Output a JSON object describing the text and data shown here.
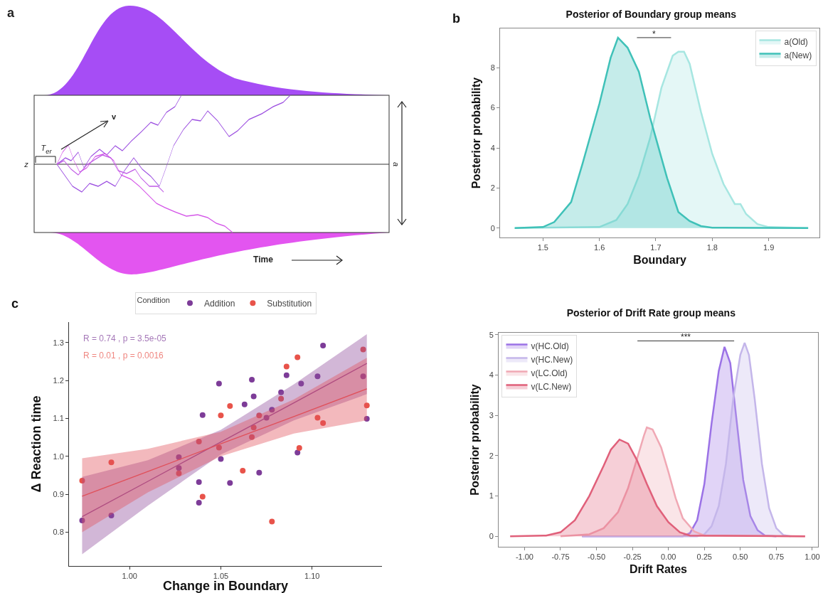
{
  "chart_data": [
    {
      "type": "other",
      "annotations": [
        "a",
        "v",
        "T$_{er}$",
        "z",
        "a",
        "Time"
      ]
    },
    {
      "type": "area",
      "title": "Posterior of Boundary group means",
      "xlabel": "Boundary",
      "ylabel": "Posterior probability",
      "annotations": [
        "b",
        "*"
      ],
      "xlim": [
        1.424,
        1.99
      ],
      "ylim": [
        -0.47,
        9.96
      ],
      "xticks": [
        1.5,
        1.6,
        1.7,
        1.8,
        1.9
      ],
      "yticks": [
        0,
        2,
        4,
        6,
        8
      ],
      "grid": false,
      "legend": "top right",
      "series": [
        {
          "name": "a(Old)",
          "color": "#a6e6e1",
          "x": [
            1.45,
            1.6,
            1.63,
            1.65,
            1.67,
            1.69,
            1.71,
            1.73,
            1.74,
            1.75,
            1.76,
            1.78,
            1.8,
            1.82,
            1.84,
            1.85,
            1.86,
            1.88,
            1.9,
            1.97
          ],
          "values": [
            0,
            0.05,
            0.4,
            1.2,
            2.6,
            4.5,
            7,
            8.6,
            8.8,
            8.8,
            8.2,
            5.8,
            3.7,
            2.2,
            1.2,
            1.2,
            0.7,
            0.2,
            0.05,
            0
          ]
        },
        {
          "name": "a(New)",
          "color": "#3fc1b8",
          "x": [
            1.45,
            1.5,
            1.52,
            1.55,
            1.57,
            1.6,
            1.62,
            1.633,
            1.65,
            1.67,
            1.69,
            1.7,
            1.72,
            1.74,
            1.76,
            1.78,
            1.8,
            1.97
          ],
          "values": [
            0,
            0.05,
            0.3,
            1.3,
            3.2,
            6.2,
            8.5,
            9.5,
            9,
            7.8,
            5.5,
            4.5,
            2.5,
            0.8,
            0.35,
            0.1,
            0.02,
            0
          ]
        }
      ]
    },
    {
      "type": "scatter",
      "xlabel": "Change in Boundary",
      "ylabel": "Δ Reaction time",
      "legend_title": "Condition",
      "legend": "top",
      "marker": "circle",
      "grid": false,
      "annotations": [
        "c",
        "R = 0.74 , p = 3.5e-05",
        "R = 0.01 , p = 0.0016"
      ],
      "xlim": [
        0.9668,
        1.1383
      ],
      "ylim": [
        0.711,
        1.354
      ],
      "xticks": [
        {
          "value": 1,
          "label": "1.00"
        },
        {
          "value": 1.05,
          "label": "1.05"
        },
        {
          "value": 1.1,
          "label": "1.10"
        }
      ],
      "yticks": [
        0.8,
        0.9,
        {
          "value": 1,
          "label": "1.0"
        },
        1.1,
        1.2,
        1.3
      ],
      "series": [
        {
          "name": "Addition",
          "color": "#7d3c98",
          "x": [
            0.974,
            0.99,
            1.027,
            1.027,
            1.038,
            1.038,
            1.04,
            1.049,
            1.05,
            1.055,
            1.063,
            1.067,
            1.068,
            1.071,
            1.075,
            1.078,
            1.083,
            1.086,
            1.092,
            1.094,
            1.103,
            1.106,
            1.128,
            1.13
          ],
          "values": [
            0.831,
            0.844,
            0.998,
            0.969,
            0.932,
            0.878,
            1.109,
            1.192,
            0.993,
            0.93,
            1.137,
            1.202,
            1.158,
            0.957,
            1.102,
            1.123,
            1.169,
            1.214,
            1.01,
            1.192,
            1.211,
            1.292,
            1.211,
            1.099
          ]
        },
        {
          "name": "Substitution",
          "color": "#e8534a",
          "x": [
            0.974,
            0.99,
            1.027,
            1.038,
            1.04,
            1.05,
            1.049,
            1.055,
            1.062,
            1.067,
            1.068,
            1.071,
            1.078,
            1.083,
            1.086,
            1.092,
            1.093,
            1.103,
            1.106,
            1.128,
            1.13
          ],
          "values": [
            0.936,
            0.984,
            0.955,
            1.039,
            0.894,
            1.108,
            1.023,
            1.133,
            0.962,
            1.051,
            1.076,
            1.108,
            0.828,
            1.152,
            1.237,
            1.261,
            1.022,
            1.102,
            1.088,
            1.282,
            1.134
          ]
        },
        {
          "type": "line",
          "marker": "none",
          "color": "#8e4a9a",
          "x": [
            0.974,
            1.01,
            1.05,
            1.09,
            1.13
          ],
          "values": [
            0.841,
            0.934,
            1.038,
            1.141,
            1.245
          ],
          "lower": [
            0.742,
            0.87,
            1.005,
            1.095,
            1.164
          ],
          "upper": [
            0.946,
            0.99,
            1.07,
            1.19,
            1.322
          ]
        },
        {
          "type": "line",
          "marker": "none",
          "color": "#e0505a",
          "x": [
            0.974,
            1.01,
            1.05,
            1.09,
            1.13
          ],
          "values": [
            0.895,
            0.96,
            1.033,
            1.105,
            1.178
          ],
          "lower": [
            0.8,
            0.905,
            1,
            1.06,
            1.095
          ],
          "upper": [
            0.995,
            1.02,
            1.065,
            1.15,
            1.26
          ]
        }
      ]
    },
    {
      "type": "area",
      "title": "Posterior of Drift Rate group means",
      "xlabel": "Drift Rates",
      "ylabel": "Posterior probability",
      "annotations": [
        "***"
      ],
      "xlim": [
        -1.18,
        1.04
      ],
      "ylim": [
        -0.26,
        5.05
      ],
      "xticks": [
        {
          "value": -1,
          "label": "-1.00"
        },
        {
          "value": -0.75,
          "label": "-0.75"
        },
        {
          "value": -0.5,
          "label": "-0.50"
        },
        {
          "value": -0.25,
          "label": "-0.25"
        },
        {
          "value": 0,
          "label": "0.00"
        },
        {
          "value": 0.25,
          "label": "0.25"
        },
        {
          "value": 0.5,
          "label": "0.50"
        },
        {
          "value": 0.75,
          "label": "0.75"
        },
        {
          "value": 1,
          "label": "1.00"
        }
      ],
      "yticks": [
        0,
        1,
        2,
        3,
        4,
        5
      ],
      "grid": false,
      "legend": "top left",
      "series": [
        {
          "name": "v(HC.Old)",
          "color": "#9b72e6",
          "x": [
            -0.6,
            0.1,
            0.15,
            0.2,
            0.25,
            0.3,
            0.35,
            0.39,
            0.43,
            0.47,
            0.52,
            0.57,
            0.62,
            0.67,
            0.75
          ],
          "values": [
            0,
            0,
            0.08,
            0.4,
            1.3,
            2.8,
            4.1,
            4.7,
            4.3,
            3,
            1.4,
            0.5,
            0.15,
            0.02,
            0
          ]
        },
        {
          "name": "v(HC.New)",
          "color": "#c4b6ea",
          "x": [
            -0.6,
            0.2,
            0.25,
            0.3,
            0.35,
            0.4,
            0.45,
            0.5,
            0.53,
            0.56,
            0.6,
            0.65,
            0.7,
            0.75,
            0.8,
            0.85
          ],
          "values": [
            0,
            0,
            0.05,
            0.25,
            0.75,
            1.8,
            3.4,
            4.5,
            4.8,
            4.5,
            3.4,
            1.8,
            0.7,
            0.2,
            0.03,
            0
          ]
        },
        {
          "name": "v(LC.Old)",
          "color": "#f0a8b4",
          "x": [
            -0.75,
            -0.55,
            -0.45,
            -0.35,
            -0.28,
            -0.22,
            -0.17,
            -0.15,
            -0.11,
            -0.05,
            0,
            0.05,
            0.1,
            0.18,
            0.25,
            0.95
          ],
          "values": [
            0,
            0.05,
            0.2,
            0.6,
            1.2,
            1.9,
            2.5,
            2.7,
            2.65,
            2.2,
            1.6,
            0.95,
            0.45,
            0.12,
            0.02,
            0
          ]
        },
        {
          "name": "v(LC.New)",
          "color": "#e0607a",
          "x": [
            -1.1,
            -0.85,
            -0.75,
            -0.65,
            -0.55,
            -0.45,
            -0.4,
            -0.34,
            -0.28,
            -0.22,
            -0.15,
            -0.08,
            0,
            0.08,
            0.15,
            0.95
          ],
          "values": [
            0,
            0.02,
            0.1,
            0.4,
            1,
            1.75,
            2.15,
            2.4,
            2.3,
            1.9,
            1.3,
            0.75,
            0.35,
            0.1,
            0.02,
            0
          ]
        }
      ]
    }
  ]
}
